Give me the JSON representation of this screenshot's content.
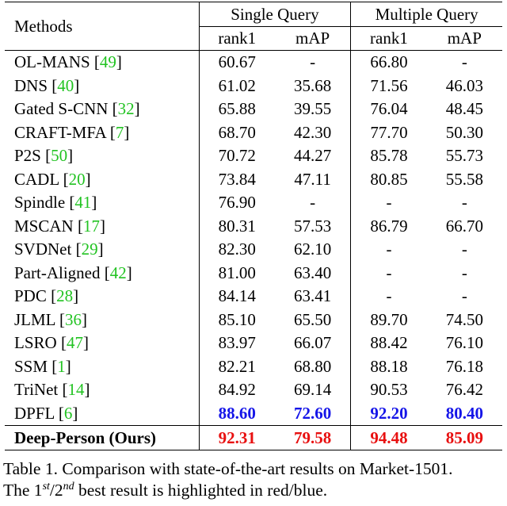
{
  "header": {
    "methods": "Methods",
    "single_query": "Single Query",
    "multiple_query": "Multiple Query",
    "rank1": "rank1",
    "map": "mAP"
  },
  "rows": [
    {
      "name": "OL-MANS",
      "ref": "49",
      "sq_rank1": "60.67",
      "sq_map": "-",
      "mq_rank1": "66.80",
      "mq_map": "-"
    },
    {
      "name": "DNS",
      "ref": "40",
      "sq_rank1": "61.02",
      "sq_map": "35.68",
      "mq_rank1": "71.56",
      "mq_map": "46.03"
    },
    {
      "name": "Gated S-CNN",
      "ref": "32",
      "sq_rank1": "65.88",
      "sq_map": "39.55",
      "mq_rank1": "76.04",
      "mq_map": "48.45"
    },
    {
      "name": "CRAFT-MFA",
      "ref": "7",
      "sq_rank1": "68.70",
      "sq_map": "42.30",
      "mq_rank1": "77.70",
      "mq_map": "50.30"
    },
    {
      "name": "P2S",
      "ref": "50",
      "sq_rank1": "70.72",
      "sq_map": "44.27",
      "mq_rank1": "85.78",
      "mq_map": "55.73"
    },
    {
      "name": "CADL",
      "ref": "20",
      "sq_rank1": "73.84",
      "sq_map": "47.11",
      "mq_rank1": "80.85",
      "mq_map": "55.58"
    },
    {
      "name": "Spindle",
      "ref": "41",
      "sq_rank1": "76.90",
      "sq_map": "-",
      "mq_rank1": "-",
      "mq_map": "-"
    },
    {
      "name": "MSCAN",
      "ref": "17",
      "sq_rank1": "80.31",
      "sq_map": "57.53",
      "mq_rank1": "86.79",
      "mq_map": "66.70"
    },
    {
      "name": "SVDNet",
      "ref": "29",
      "sq_rank1": "82.30",
      "sq_map": "62.10",
      "mq_rank1": "-",
      "mq_map": "-"
    },
    {
      "name": "Part-Aligned",
      "ref": "42",
      "sq_rank1": "81.00",
      "sq_map": "63.40",
      "mq_rank1": "-",
      "mq_map": "-"
    },
    {
      "name": "PDC",
      "ref": "28",
      "sq_rank1": "84.14",
      "sq_map": "63.41",
      "mq_rank1": "-",
      "mq_map": "-"
    },
    {
      "name": "JLML",
      "ref": "36",
      "sq_rank1": "85.10",
      "sq_map": "65.50",
      "mq_rank1": "89.70",
      "mq_map": "74.50"
    },
    {
      "name": "LSRO",
      "ref": "47",
      "sq_rank1": "83.97",
      "sq_map": "66.07",
      "mq_rank1": "88.42",
      "mq_map": "76.10"
    },
    {
      "name": "SSM",
      "ref": "1",
      "sq_rank1": "82.21",
      "sq_map": "68.80",
      "mq_rank1": "88.18",
      "mq_map": "76.18"
    },
    {
      "name": "TriNet",
      "ref": "14",
      "sq_rank1": "84.92",
      "sq_map": "69.14",
      "mq_rank1": "90.53",
      "mq_map": "76.42"
    },
    {
      "name": "DPFL",
      "ref": "6",
      "sq_rank1": "88.60",
      "sq_map": "72.60",
      "mq_rank1": "92.20",
      "mq_map": "80.40",
      "highlight": "blue"
    }
  ],
  "ours": {
    "name": "Deep-Person (Ours)",
    "sq_rank1": "92.31",
    "sq_map": "79.58",
    "mq_rank1": "94.48",
    "mq_map": "85.09",
    "highlight": "red"
  },
  "caption": {
    "line1": "Table 1. Comparison with state-of-the-art results on Market-1501.",
    "line2_pre": "The 1",
    "sup1": "st",
    "slash": "/2",
    "sup2": "nd",
    "line2_post": " best result is highlighted in red/blue."
  },
  "colors": {
    "best": "#e81010",
    "second": "#1515e8",
    "ref_link": "#22c322"
  }
}
